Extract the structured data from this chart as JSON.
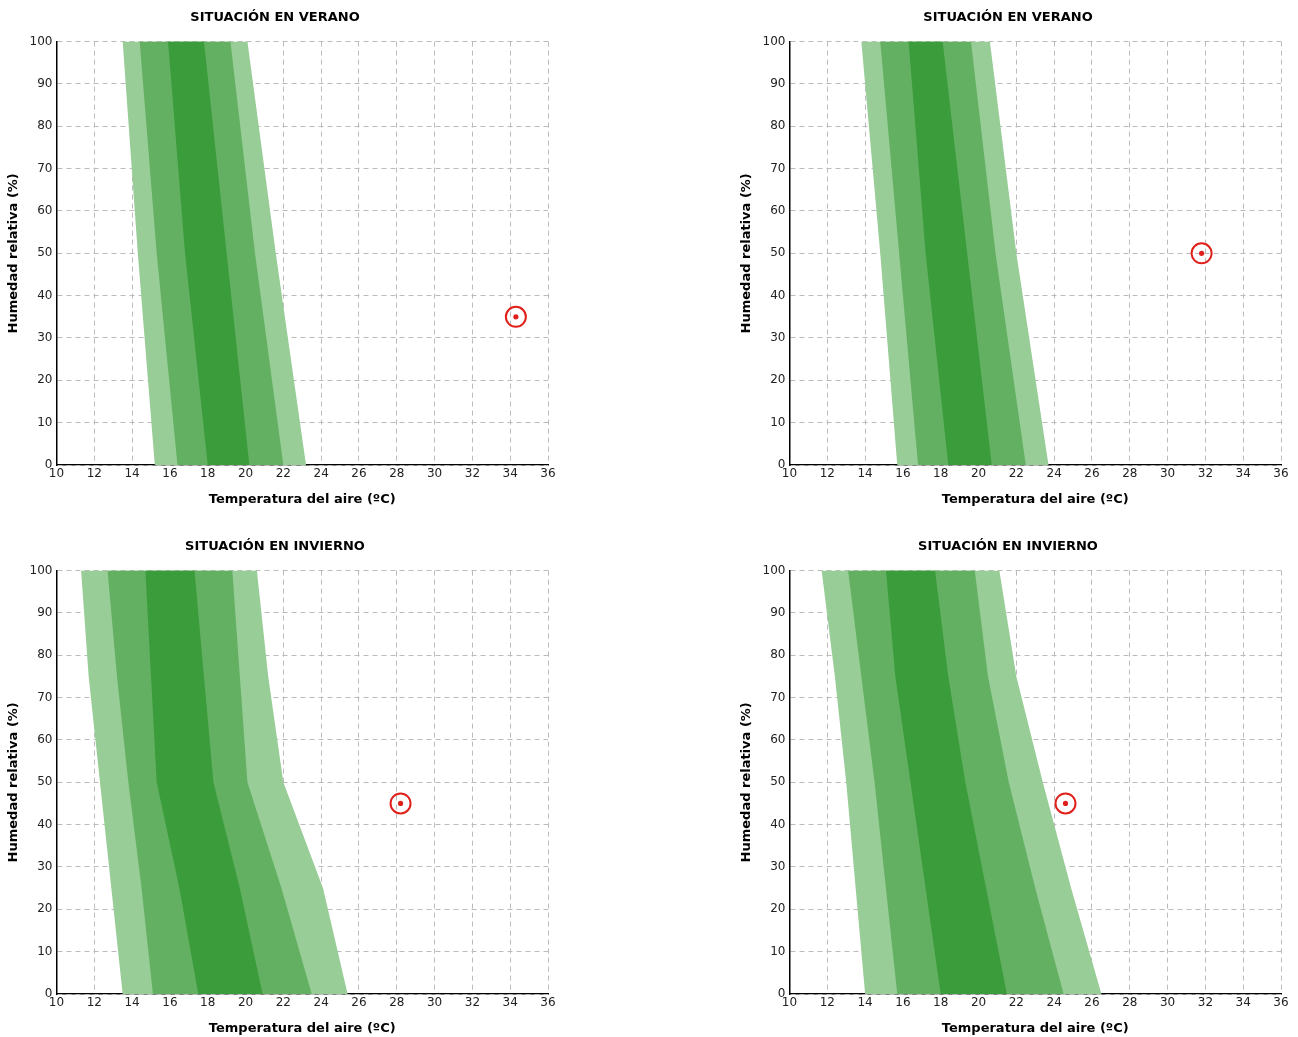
{
  "chart_data": [
    {
      "type": "area",
      "title": "SITUACIÓN EN VERANO",
      "xlabel": "Temperatura del aire (ºC)",
      "ylabel": "Humedad relativa (%)",
      "xlim": [
        10,
        36
      ],
      "ylim": [
        0,
        100
      ],
      "xticks": [
        10,
        12,
        14,
        16,
        18,
        20,
        22,
        24,
        26,
        28,
        30,
        32,
        34,
        36
      ],
      "yticks": [
        0,
        10,
        20,
        30,
        40,
        50,
        60,
        70,
        80,
        90,
        100
      ],
      "grid": true,
      "tick_labels": "xy",
      "series": [
        {
          "color": "#98cd97",
          "x": [
            13.5,
            14.3,
            15.2,
            23.2,
            21.6,
            20.1,
            13.5
          ],
          "values": [
            100,
            50,
            0,
            0,
            50,
            100,
            100
          ]
        },
        {
          "color": "#63b062",
          "x": [
            14.4,
            15.3,
            16.4,
            22.0,
            20.5,
            19.2,
            14.4
          ],
          "values": [
            100,
            50,
            0,
            0,
            50,
            100,
            100
          ]
        },
        {
          "color": "#3a9c3a",
          "x": [
            15.9,
            16.8,
            18.0,
            20.2,
            19.0,
            17.8,
            15.9
          ],
          "values": [
            100,
            50,
            0,
            0,
            50,
            100,
            100
          ]
        },
        {
          "type": "scatter",
          "color": "#e0201b",
          "marker": "circle",
          "x": [
            34.3
          ],
          "values": [
            35
          ]
        }
      ]
    },
    {
      "type": "area",
      "title": "SITUACIÓN EN VERANO",
      "xlabel": "Temperatura del aire (ºC)",
      "ylabel": "Humedad relativa (%)",
      "xlim": [
        10,
        36
      ],
      "ylim": [
        0,
        100
      ],
      "xticks": [
        10,
        12,
        14,
        16,
        18,
        20,
        22,
        24,
        26,
        28,
        30,
        32,
        34,
        36
      ],
      "yticks": [
        0,
        10,
        20,
        30,
        40,
        50,
        60,
        70,
        80,
        90,
        100
      ],
      "grid": true,
      "tick_labels": "xy",
      "series": [
        {
          "color": "#98cd97",
          "x": [
            13.8,
            14.8,
            15.7,
            23.7,
            22.0,
            20.6,
            13.8
          ],
          "values": [
            100,
            50,
            0,
            0,
            50,
            100,
            100
          ]
        },
        {
          "color": "#63b062",
          "x": [
            14.8,
            15.8,
            16.8,
            22.5,
            20.9,
            19.6,
            14.8
          ],
          "values": [
            100,
            50,
            0,
            0,
            50,
            100,
            100
          ]
        },
        {
          "color": "#3a9c3a",
          "x": [
            16.3,
            17.2,
            18.4,
            20.7,
            19.4,
            18.1,
            16.3
          ],
          "values": [
            100,
            50,
            0,
            0,
            50,
            100,
            100
          ]
        },
        {
          "type": "scatter",
          "color": "#e0201b",
          "marker": "circle",
          "x": [
            31.8
          ],
          "values": [
            50
          ]
        }
      ]
    },
    {
      "type": "area",
      "title": "SITUACIÓN EN INVIERNO",
      "xlabel": "Temperatura del aire (ºC)",
      "ylabel": "Humedad relativa (%)",
      "xlim": [
        10,
        36
      ],
      "ylim": [
        0,
        100
      ],
      "xticks": [
        10,
        12,
        14,
        16,
        18,
        20,
        22,
        24,
        26,
        28,
        30,
        32,
        34,
        36
      ],
      "yticks": [
        0,
        10,
        20,
        30,
        40,
        50,
        60,
        70,
        80,
        90,
        100
      ],
      "grid": true,
      "tick_labels": "xy",
      "series": [
        {
          "color": "#98cd97",
          "x": [
            11.3,
            11.7,
            12.3,
            12.9,
            13.5,
            25.4,
            24.1,
            22.0,
            21.2,
            20.6,
            11.3
          ],
          "values": [
            100,
            75,
            50,
            25,
            0,
            0,
            25,
            50,
            75,
            100,
            100
          ]
        },
        {
          "color": "#63b062",
          "x": [
            12.7,
            13.2,
            13.8,
            14.5,
            15.1,
            23.5,
            21.9,
            20.1,
            19.7,
            19.3,
            12.7
          ],
          "values": [
            100,
            75,
            50,
            25,
            0,
            0,
            25,
            50,
            75,
            100,
            100
          ]
        },
        {
          "color": "#3a9c3a",
          "x": [
            14.7,
            15.0,
            15.3,
            16.5,
            17.5,
            20.9,
            19.7,
            18.3,
            17.8,
            17.3,
            14.7
          ],
          "values": [
            100,
            75,
            50,
            25,
            0,
            0,
            25,
            50,
            75,
            100,
            100
          ]
        },
        {
          "type": "scatter",
          "color": "#e0201b",
          "marker": "circle",
          "x": [
            28.2
          ],
          "values": [
            45
          ]
        }
      ]
    },
    {
      "type": "area",
      "title": "SITUACIÓN EN INVIERNO",
      "xlabel": "Temperatura del aire (ºC)",
      "ylabel": "Humedad relativa (%)",
      "xlim": [
        10,
        36
      ],
      "ylim": [
        0,
        100
      ],
      "xticks": [
        10,
        12,
        14,
        16,
        18,
        20,
        22,
        24,
        26,
        28,
        30,
        32,
        34,
        36
      ],
      "yticks": [
        0,
        10,
        20,
        30,
        40,
        50,
        60,
        70,
        80,
        90,
        100
      ],
      "grid": true,
      "tick_labels": "xy",
      "series": [
        {
          "color": "#98cd97",
          "x": [
            11.7,
            12.4,
            13.0,
            13.5,
            14.0,
            26.5,
            24.9,
            23.4,
            22.0,
            21.1,
            11.7
          ],
          "values": [
            100,
            75,
            50,
            25,
            0,
            0,
            25,
            50,
            75,
            100,
            100
          ]
        },
        {
          "color": "#63b062",
          "x": [
            13.1,
            13.8,
            14.5,
            15.1,
            15.7,
            24.5,
            23.0,
            21.6,
            20.5,
            19.8,
            13.1
          ],
          "values": [
            100,
            75,
            50,
            25,
            0,
            0,
            25,
            50,
            75,
            100,
            100
          ]
        },
        {
          "color": "#3a9c3a",
          "x": [
            15.1,
            15.6,
            16.4,
            17.2,
            18.0,
            21.5,
            20.4,
            19.3,
            18.4,
            17.7,
            15.1
          ],
          "values": [
            100,
            75,
            50,
            25,
            0,
            0,
            25,
            50,
            75,
            100,
            100
          ]
        },
        {
          "type": "scatter",
          "color": "#e0201b",
          "marker": "circle",
          "x": [
            24.6
          ],
          "values": [
            45
          ]
        }
      ]
    }
  ]
}
